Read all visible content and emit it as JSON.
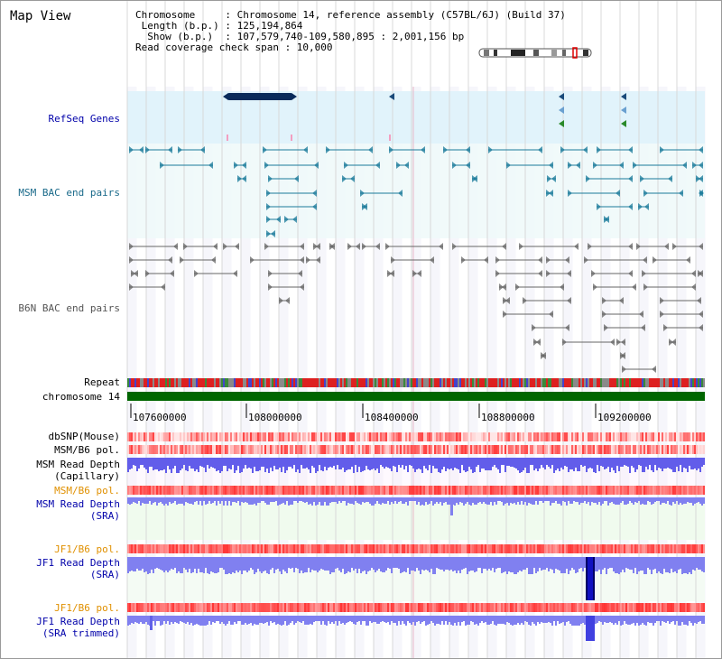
{
  "app": {
    "title": "Map View"
  },
  "header": {
    "chromosome_line": "Chromosome     : Chromosome 14, reference assembly (C57BL/6J) (Build 37)",
    "length_line": " Length (b.p.) : 125,194,864",
    "show_line": "  Show (b.p.)  : 107,579,740-109,580,895 : 2,001,156 bp",
    "coverage_line": "Read coverage check span : 10,000"
  },
  "tracks": {
    "refseq": "RefSeq Genes",
    "msm_bac": "MSM BAC end pairs",
    "b6n_bac": "B6N BAC end pairs",
    "repeat": "Repeat",
    "chromosome": "chromosome 14",
    "dbsnp": "dbSNP(Mouse)",
    "msm_b6_pol_1": "MSM/B6 pol.",
    "msm_depth_cap_1": "MSM Read Depth",
    "msm_depth_cap_2": "(Capillary)",
    "msm_b6_pol_2": "MSM/B6 pol.",
    "msm_depth_sra_1": "MSM Read Depth",
    "msm_depth_sra_2": "(SRA)",
    "jf1_b6_pol_1": "JF1/B6 pol.",
    "jf1_depth_sra_1": "JF1 Read Depth",
    "jf1_depth_sra_2": "(SRA)",
    "jf1_b6_pol_2": "JF1/B6 pol.",
    "jf1_depth_trim_1": "JF1 Read Depth",
    "jf1_depth_trim_2": "(SRA trimmed)"
  },
  "axis": {
    "ticks": [
      "107600000",
      "108000000",
      "108400000",
      "108800000",
      "109200000"
    ]
  },
  "colors": {
    "refseq_bg": "#dff2fb",
    "bac_bg": "#effaf9",
    "grid": "#d8d8d8",
    "chrom_bar": "#006600",
    "depth_blue": "#1010e0",
    "depth_light": "#8080f0",
    "pol_red": "#ff2020",
    "pol_pink": "#ffc0c0"
  }
}
